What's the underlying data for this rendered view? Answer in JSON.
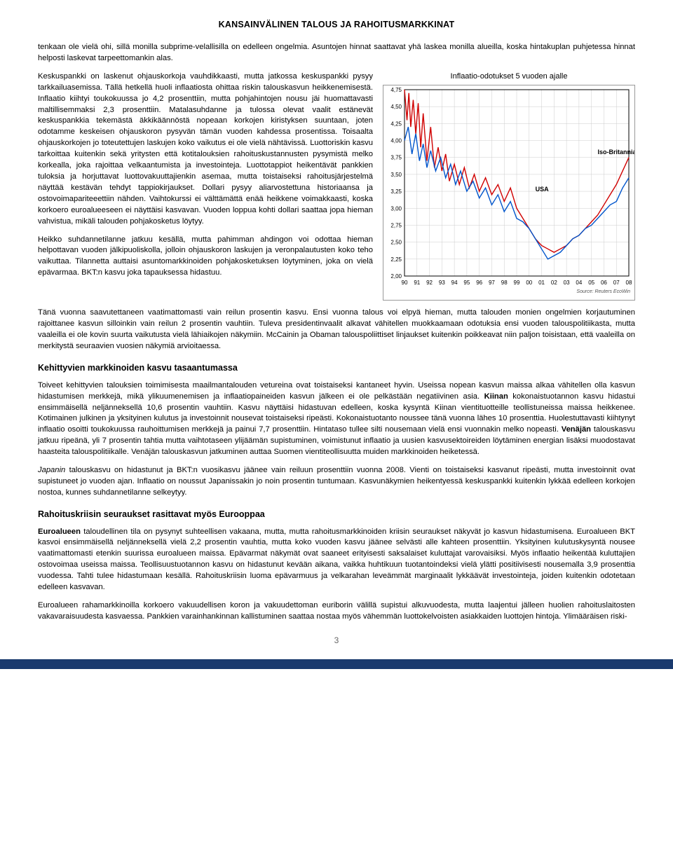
{
  "header": {
    "title": "KANSAINVÄLINEN TALOUS JA RAHOITUSMARKKINAT"
  },
  "para1": "tenkaan ole vielä ohi, sillä monilla subprime-velallisilla on edelleen ongelmia. Asuntojen hinnat saattavat yhä laskea monilla alueilla, koska hintakuplan puhjetessa hinnat helposti laskevat tarpeettomankin alas.",
  "para2": "Keskuspankki on laskenut ohjauskorkoja vauhdikkaasti, mutta jatkossa keskuspankki pysyy tarkkailuasemissa. Tällä hetkellä huoli inflaatiosta ohittaa riskin talouskasvun heikkenemisestä. Inflaatio kiihtyi toukokuussa jo 4,2 prosenttiin, mutta pohjahintojen nousu jäi huomattavasti maltillisemmaksi 2,3 prosenttiin. Matalasuhdanne ja tulossa olevat vaalit estänevät keskuspankkia tekemästä äkkikäännöstä nopeaan korkojen kiristyksen suuntaan, joten odotamme keskeisen ohjauskoron pysyvän tämän vuoden kahdessa prosentissa. Toisaalta ohjauskorkojen jo toteutettujen laskujen koko vaikutus ei ole vielä nähtävissä. Luottoriskin kasvu tarkoittaa kuitenkin sekä yritysten että kotitalouksien rahoituskustannusten pysymistä melko korkealla, joka rajoittaa velkaantumista ja investointeja. Luottotappiot heikentävät pankkien tuloksia ja horjuttavat luottovakuuttajienkin asemaa, mutta toistaiseksi rahoitusjärjestelmä näyttää kestävän tehdyt tappiokirjaukset. Dollari pysyy aliarvostettuna historiaansa ja ostovoimapariteeettiin nähden. Vaihtokurssi ei välttämättä enää heikkene voimakkaasti, koska korkoero euroalueeseen ei näyttäisi kasvavan. Vuoden loppua kohti dollari saattaa jopa hieman vahvistua, mikäli talouden pohjakosketus löytyy.",
  "para3": "Heikko suhdannetilanne jatkuu kesällä, mutta pahimman ahdingon voi odottaa hieman helpottavan vuoden jälkipuoliskolla, jolloin ohjauskoron laskujen ja veronpalautusten koko teho vaikuttaa. Tilannetta auttaisi asuntomarkkinoiden pohjakosketuksen löytyminen, joka on vielä epävarmaa. BKT:n kasvu joka tapauksessa hidastuu. Tänä vuonna saavutettaneen vaatimattomasti vain reilun prosentin kasvu. Ensi vuonna talous voi elpyä hieman, mutta talouden monien ongelmien korjautuminen rajoittanee kasvun silloinkin vain reilun 2 prosentin vauhtiin. Tuleva presidentinvaalit alkavat vähitellen muokkaamaan odotuksia ensi vuoden talouspolitiikasta, mutta vaaleilla ei ole kovin suurta vaikutusta vielä lähiaikojen näkymiin. McCainin ja Obaman talouspoliittiset linjaukset kuitenkin poikkeavat niin paljon toisistaan, että vaaleilla on merkitystä seuraavien vuosien näkymiä arvioitaessa.",
  "sec1_head": "Kehittyvien markkinoiden kasvu tasaantumassa",
  "para4a": "Toiveet kehittyvien talouksien toimimisesta maailmantalouden vetureina ovat toistaiseksi kantaneet hyvin. Useissa nopean kasvun maissa alkaa vähitellen olla kasvun hidastumisen merkkejä, mikä ylikuumenemisen ja inflaatiopaineiden kasvun jälkeen ei ole pelkästään negatiivinen asia. ",
  "para4b_bold": "Kiinan",
  "para4c": " kokonaistuotannon kasvu hidastui ensimmäisellä neljänneksellä 10,6 prosentin vauhtiin. Kasvu näyttäisi hidastuvan edelleen, koska kysyntä Kiinan vientituotteille teollistuneissa maissa heikkenee. Kotimainen julkinen ja yksityinen kulutus ja investoinnit nousevat toistaiseksi ripeästi. Kokonaistuotanto noussee tänä vuonna lähes 10 prosenttia. Huolestuttavasti kiihtynyt inflaatio osoitti toukokuussa rauhoittumisen merkkejä ja painui 7,7 prosenttiin. Hintataso tullee silti nousemaan vielä ensi vuonnakin melko nopeasti. ",
  "para4d_bold": "Venäjän",
  "para4e": " talouskasvu jatkuu ripeänä, yli 7 prosentin tahtia mutta vaihtotaseen ylijäämän supistuminen, voimistunut inflaatio ja uusien kasvusektoireiden löytäminen energian lisäksi muodostavat haasteita talouspolitiikalle. Venäjän talouskasvun jatkuminen auttaa Suomen vientiteollisuutta muiden markkinoiden heiketessä.",
  "para5a_ital": "Japanin",
  "para5b": " talouskasvu on hidastunut ja BKT:n vuosikasvu jäänee vain reiluun prosenttiin vuonna 2008. Vienti on toistaiseksi kasvanut ripeästi, mutta investoinnit ovat supistuneet jo vuoden ajan. Inflaatio on noussut Japanissakin jo noin prosentin tuntumaan. Kasvunäkymien heikentyessä keskuspankki kuitenkin lykkää edelleen korkojen nostoa, kunnes suhdannetilanne selkeytyy.",
  "sec2_head": "Rahoituskriisin seuraukset rasittavat myös Eurooppaa",
  "para6a_bold": "Euroalueen",
  "para6b": " taloudellinen tila on pysynyt suhteellisen vakaana, mutta, mutta rahoitusmarkkinoiden kriisin seuraukset näkyvät jo kasvun hidastumisena. Euroalueen BKT kasvoi ensimmäisellä neljänneksellä vielä 2,2 prosentin vauhtia, mutta koko vuoden kasvu jäänee selvästi alle kahteen prosenttiin. Yksityinen kulutuskysyntä nousee vaatimattomasti etenkin suurissa euroalueen maissa. Epävarmat näkymät ovat saaneet erityisesti saksalaiset kuluttajat varovaisiksi. Myös inflaatio heikentää kuluttajien ostovoimaa useissa maissa. Teollisuustuotannon kasvu on hidastunut kevään aikana, vaikka huhtikuun tuotantoindeksi vielä ylätti positiivisesti nousemalla 3,9 prosenttia vuodessa. Tahti tulee hidastumaan kesällä. Rahoituskriisin luoma epävarmuus ja velkarahan leveämmät marginaalit lykkäävät investointeja, joiden kuitenkin odotetaan edelleen kasvavan.",
  "para7": "Euroalueen rahamarkkinoilla korkoero vakuudellisen koron ja vakuudettoman euriborin välillä supistui alkuvuodesta, mutta laajentui jälleen huolien rahoituslaitosten vakavaraisuudesta kasvaessa. Pankkien varainhankinnan kallistuminen saattaa nostaa myös vähemmän luottokelvoisten asiakkaiden luottojen hintoja. Ylimääräisen riski-",
  "page_number": "3",
  "chart": {
    "title": "Inflaatio-odotukset 5 vuoden ajalle",
    "ylim": [
      2.0,
      4.75
    ],
    "ytick_step": 0.25,
    "yticks": [
      "4,75",
      "4,50",
      "4,25",
      "4,00",
      "3,75",
      "3,50",
      "3,25",
      "3,00",
      "2,75",
      "2,50",
      "2,25",
      "2,00"
    ],
    "xticks": [
      "90",
      "91",
      "92",
      "93",
      "94",
      "95",
      "96",
      "97",
      "98",
      "99",
      "00",
      "01",
      "02",
      "03",
      "04",
      "05",
      "06",
      "07",
      "08"
    ],
    "source": "Source: Reuters EcoWin",
    "series": [
      {
        "name": "Iso-Britannia",
        "color": "#d00000",
        "label_pos": {
          "x": 15.5,
          "y": 3.8
        },
        "points": [
          [
            0.0,
            4.75
          ],
          [
            0.2,
            4.3
          ],
          [
            0.35,
            4.7
          ],
          [
            0.5,
            4.2
          ],
          [
            0.7,
            4.6
          ],
          [
            0.9,
            4.1
          ],
          [
            1.1,
            4.55
          ],
          [
            1.3,
            3.9
          ],
          [
            1.5,
            4.4
          ],
          [
            1.8,
            3.7
          ],
          [
            2.1,
            4.2
          ],
          [
            2.4,
            3.6
          ],
          [
            2.7,
            3.9
          ],
          [
            3.0,
            3.55
          ],
          [
            3.3,
            3.8
          ],
          [
            3.6,
            3.4
          ],
          [
            4.0,
            3.65
          ],
          [
            4.4,
            3.35
          ],
          [
            4.8,
            3.6
          ],
          [
            5.2,
            3.3
          ],
          [
            5.6,
            3.5
          ],
          [
            6.0,
            3.25
          ],
          [
            6.5,
            3.45
          ],
          [
            7.0,
            3.2
          ],
          [
            7.5,
            3.35
          ],
          [
            8.0,
            3.1
          ],
          [
            8.5,
            3.3
          ],
          [
            9.0,
            3.0
          ],
          [
            9.5,
            2.85
          ],
          [
            10.0,
            2.7
          ],
          [
            10.5,
            2.55
          ],
          [
            11.0,
            2.45
          ],
          [
            11.5,
            2.4
          ],
          [
            12.0,
            2.35
          ],
          [
            12.5,
            2.4
          ],
          [
            13.0,
            2.45
          ],
          [
            13.5,
            2.55
          ],
          [
            14.0,
            2.6
          ],
          [
            14.5,
            2.7
          ],
          [
            15.0,
            2.8
          ],
          [
            15.5,
            2.9
          ],
          [
            16.0,
            3.05
          ],
          [
            16.5,
            3.2
          ],
          [
            17.0,
            3.35
          ],
          [
            17.5,
            3.55
          ],
          [
            18.0,
            3.75
          ]
        ]
      },
      {
        "name": "USA",
        "color": "#0055cc",
        "label_pos": {
          "x": 10.5,
          "y": 3.25
        },
        "points": [
          [
            0.0,
            4.0
          ],
          [
            0.3,
            4.2
          ],
          [
            0.6,
            3.8
          ],
          [
            0.9,
            4.1
          ],
          [
            1.2,
            3.7
          ],
          [
            1.5,
            3.95
          ],
          [
            1.8,
            3.6
          ],
          [
            2.1,
            3.85
          ],
          [
            2.5,
            3.55
          ],
          [
            2.9,
            3.75
          ],
          [
            3.3,
            3.45
          ],
          [
            3.7,
            3.65
          ],
          [
            4.1,
            3.35
          ],
          [
            4.5,
            3.55
          ],
          [
            5.0,
            3.25
          ],
          [
            5.5,
            3.4
          ],
          [
            6.0,
            3.15
          ],
          [
            6.5,
            3.3
          ],
          [
            7.0,
            3.05
          ],
          [
            7.5,
            3.2
          ],
          [
            8.0,
            2.95
          ],
          [
            8.5,
            3.1
          ],
          [
            9.0,
            2.85
          ],
          [
            9.5,
            2.8
          ],
          [
            10.0,
            2.7
          ],
          [
            10.5,
            2.55
          ],
          [
            11.0,
            2.4
          ],
          [
            11.5,
            2.25
          ],
          [
            12.0,
            2.3
          ],
          [
            12.5,
            2.35
          ],
          [
            13.0,
            2.45
          ],
          [
            13.5,
            2.55
          ],
          [
            14.0,
            2.6
          ],
          [
            14.5,
            2.7
          ],
          [
            15.0,
            2.75
          ],
          [
            15.5,
            2.85
          ],
          [
            16.0,
            2.95
          ],
          [
            16.5,
            3.05
          ],
          [
            17.0,
            3.1
          ],
          [
            17.5,
            3.3
          ],
          [
            18.0,
            3.45
          ]
        ]
      }
    ],
    "grid_color": "#cccccc",
    "axis_color": "#000000",
    "tick_fontsize": 8
  }
}
